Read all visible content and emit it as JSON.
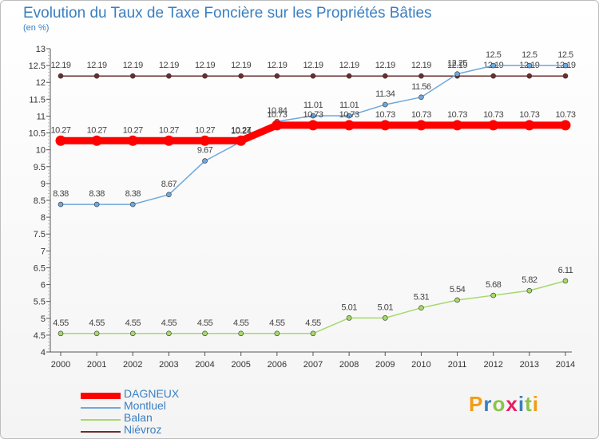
{
  "chart_data": {
    "type": "line",
    "title": "Evolution du Taux de Taxe Foncière sur les Propriétés Bâties",
    "unit": "(en %)",
    "x": [
      "2000",
      "2001",
      "2002",
      "2003",
      "2004",
      "2005",
      "2006",
      "2007",
      "2008",
      "2009",
      "2010",
      "2011",
      "2012",
      "2013",
      "2014"
    ],
    "ylim": [
      4,
      13
    ],
    "yticks": [
      "4",
      "4.5",
      "5",
      "5.5",
      "6",
      "6.5",
      "7",
      "7.5",
      "8",
      "8.5",
      "9",
      "9.5",
      "10",
      "10.5",
      "11",
      "11.5",
      "12",
      "12.5",
      "13"
    ],
    "grid": false,
    "legend_position": "bottom-left",
    "series": [
      {
        "name": "Niévroz",
        "color": "#6b2d2d",
        "values": [
          12.19,
          12.19,
          12.19,
          12.19,
          12.19,
          12.19,
          12.19,
          12.19,
          12.19,
          12.19,
          12.19,
          12.19,
          12.19,
          12.19,
          12.19
        ],
        "labels": [
          "12.19",
          "12.19",
          "12.19",
          "12.19",
          "12.19",
          "12.19",
          "12.19",
          "12.19",
          "12.19",
          "12.19",
          "12.19",
          "12.19",
          "12.19",
          "12.19",
          "12.19"
        ]
      },
      {
        "name": "Balan",
        "color": "#a6d96a",
        "values": [
          4.55,
          4.55,
          4.55,
          4.55,
          4.55,
          4.55,
          4.55,
          4.55,
          5.01,
          5.01,
          5.31,
          5.54,
          5.68,
          5.82,
          6.11
        ],
        "labels": [
          "4.55",
          "4.55",
          "4.55",
          "4.55",
          "4.55",
          "4.55",
          "4.55",
          "4.55",
          "5.01",
          "5.01",
          "5.31",
          "5.54",
          "5.68",
          "5.82",
          "6.11"
        ]
      },
      {
        "name": "Montluel",
        "color": "#6fa8dc",
        "values": [
          8.38,
          8.38,
          8.38,
          8.67,
          9.67,
          10.24,
          10.84,
          11.01,
          11.01,
          11.34,
          11.56,
          12.25,
          12.5,
          12.5,
          12.5
        ],
        "labels": [
          "8.38",
          "8.38",
          "8.38",
          "8.67",
          "9.67",
          "10.24",
          "10.84",
          "11.01",
          "11.01",
          "11.34",
          "11.56",
          "12.25",
          "12.5",
          "12.5",
          "12.5"
        ]
      },
      {
        "name": "DAGNEUX",
        "color": "#ff0000",
        "values": [
          10.27,
          10.27,
          10.27,
          10.27,
          10.27,
          10.27,
          10.73,
          10.73,
          10.73,
          10.73,
          10.73,
          10.73,
          10.73,
          10.73,
          10.73
        ],
        "labels": [
          "10.27",
          "10.27",
          "10.27",
          "10.27",
          "10.27",
          "10.27",
          "10.73",
          "10.73",
          "10.73",
          "10.73",
          "10.73",
          "10.73",
          "10.73",
          "10.73",
          "10.73"
        ]
      }
    ],
    "legend": [
      {
        "name": "DAGNEUX",
        "color": "#ff0000"
      },
      {
        "name": "Montluel",
        "color": "#6fa8dc"
      },
      {
        "name": "Balan",
        "color": "#a6d96a"
      },
      {
        "name": "Niévroz",
        "color": "#6b2d2d"
      }
    ]
  },
  "logo": {
    "text": "Proxiti",
    "colors": [
      "#f39c12",
      "#3a7fc0",
      "#8bc34a",
      "#e91e63",
      "#3a7fc0",
      "#8bc34a",
      "#f39c12"
    ]
  }
}
